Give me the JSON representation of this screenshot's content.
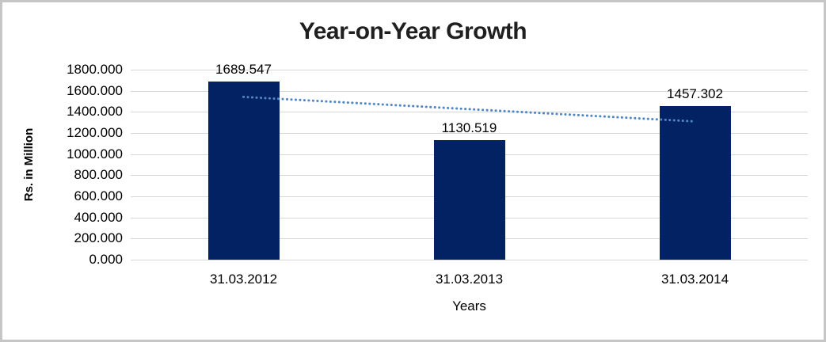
{
  "frame": {
    "background": "#ffffff",
    "border_color": "#c6c6c6"
  },
  "chart_data": {
    "type": "bar",
    "title": "Year-on-Year Growth",
    "xlabel": "Years",
    "ylabel": "Rs. in Million",
    "categories": [
      "31.03.2012",
      "31.03.2013",
      "31.03.2014"
    ],
    "values": [
      1689.547,
      1130.519,
      1457.302
    ],
    "value_labels": [
      "1689.547",
      "1130.519",
      "1457.302"
    ],
    "ylim": [
      0,
      1800
    ],
    "ytick_step": 200,
    "ytick_labels_top_down": [
      "1800.000",
      "1600.000",
      "1400.000",
      "1200.000",
      "1000.000",
      "800.000",
      "600.000",
      "400.000",
      "200.000",
      "0.000"
    ],
    "grid": true,
    "legend": false,
    "bar_color": "#032263",
    "gridline_color": "#d6d6d6",
    "title_color": "#1f1f1f",
    "trendline": {
      "style": "dotted",
      "color": "#4f86c6",
      "start_value": 1541.91,
      "end_value": 1309.67
    }
  }
}
